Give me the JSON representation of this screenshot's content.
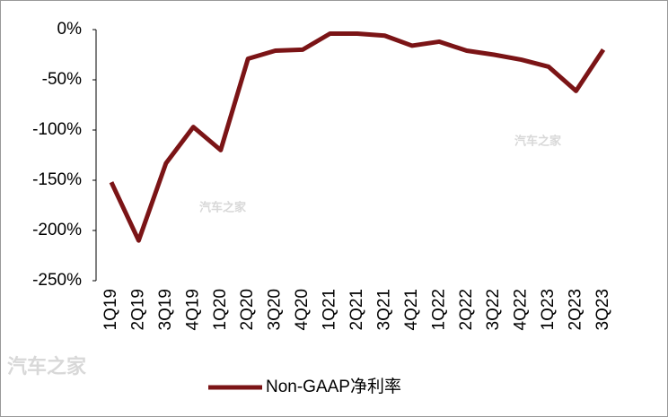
{
  "chart_data": {
    "type": "line",
    "categories": [
      "1Q19",
      "2Q19",
      "3Q19",
      "4Q19",
      "1Q20",
      "2Q20",
      "3Q20",
      "4Q20",
      "1Q21",
      "2Q21",
      "3Q21",
      "4Q21",
      "1Q22",
      "2Q22",
      "3Q22",
      "4Q22",
      "1Q23",
      "2Q23",
      "3Q23"
    ],
    "series": [
      {
        "name": "Non-GAAP净利率",
        "color": "#7b1416",
        "values": [
          -152,
          -210,
          -133,
          -97,
          -120,
          -29,
          -21,
          -20,
          -4,
          -4,
          -6,
          -16,
          -12,
          -21,
          -25,
          -30,
          -37,
          -61,
          -20
        ]
      }
    ],
    "ylim": [
      -250,
      0
    ],
    "yticks": [
      {
        "value": -250,
        "label": "-250%"
      },
      {
        "value": -200,
        "label": "-200%"
      },
      {
        "value": -150,
        "label": "-150%"
      },
      {
        "value": -100,
        "label": "-100%"
      },
      {
        "value": -50,
        "label": "-50%"
      },
      {
        "value": 0,
        "label": "0%"
      }
    ],
    "legend": "bottom",
    "watermark": "汽车之家"
  }
}
